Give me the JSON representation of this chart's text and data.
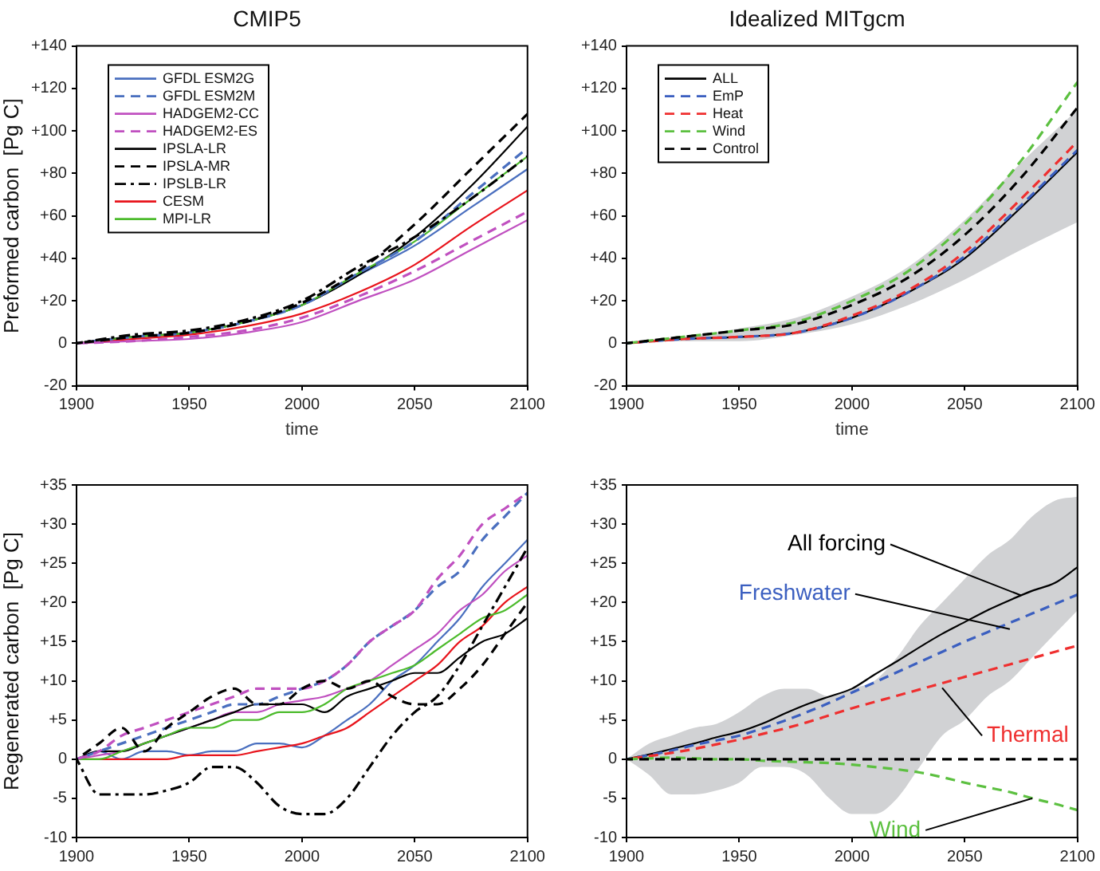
{
  "chart_data": [
    {
      "type": "line",
      "title": "CMIP5",
      "xlabel": "time",
      "ylabel": "Preformed carbon  [Pg C]",
      "legend": "top left",
      "x": [
        1900,
        1925,
        1950,
        1975,
        2000,
        2025,
        2050,
        2075,
        2100
      ],
      "xlim": [
        1900,
        2100
      ],
      "xticks": [
        1900,
        1950,
        2000,
        2050,
        2100
      ],
      "ylim": [
        -20,
        140
      ],
      "yticks": [
        -20,
        0,
        {
          "value": 20,
          "label": "+20"
        },
        {
          "value": 40,
          "label": "+40"
        },
        {
          "value": 60,
          "label": "+60"
        },
        {
          "value": 80,
          "label": "+80"
        },
        {
          "value": 100,
          "label": "+100"
        },
        {
          "value": 120,
          "label": "+120"
        },
        {
          "value": 140,
          "label": "+140"
        }
      ],
      "grid": false,
      "series": [
        {
          "name": "GFDL ESM2G",
          "color": "#4a6fbf",
          "line_style": "solid",
          "values": [
            0,
            3,
            5,
            10,
            18,
            32,
            46,
            64,
            82
          ]
        },
        {
          "name": "GFDL ESM2M",
          "color": "#4a6fbf",
          "line_style": "dashed",
          "values": [
            0,
            3,
            5,
            10,
            18,
            33,
            48,
            70,
            92
          ]
        },
        {
          "name": "HADGEM2-CC",
          "color": "#c050c0",
          "line_style": "solid",
          "values": [
            0,
            1,
            2,
            5,
            10,
            20,
            30,
            44,
            58
          ]
        },
        {
          "name": "HADGEM2-ES",
          "color": "#c050c0",
          "line_style": "dashed",
          "values": [
            0,
            1,
            3,
            6,
            12,
            22,
            34,
            48,
            62
          ]
        },
        {
          "name": "IPSLA-LR",
          "color": "#000000",
          "line_style": "solid",
          "values": [
            0,
            3,
            5,
            10,
            18,
            32,
            50,
            74,
            102
          ]
        },
        {
          "name": "IPSLA-MR",
          "color": "#000000",
          "line_style": "dashed",
          "values": [
            0,
            3,
            5,
            10,
            19,
            34,
            56,
            82,
            108
          ]
        },
        {
          "name": "IPSLB-LR",
          "color": "#000000",
          "line_style": "dashdot",
          "values": [
            0,
            4,
            6,
            11,
            20,
            36,
            50,
            68,
            88
          ]
        },
        {
          "name": "CESM",
          "color": "#e8141c",
          "line_style": "solid",
          "values": [
            0,
            2,
            4,
            8,
            14,
            24,
            37,
            55,
            72
          ]
        },
        {
          "name": "MPI-LR",
          "color": "#4cbb2c",
          "line_style": "solid",
          "values": [
            0,
            3,
            5,
            10,
            18,
            33,
            48,
            68,
            88
          ]
        }
      ]
    },
    {
      "type": "line",
      "title": "Idealized MITgcm",
      "xlabel": "time",
      "legend": "top left",
      "x": [
        1900,
        1925,
        1950,
        1975,
        2000,
        2025,
        2050,
        2075,
        2100
      ],
      "xlim": [
        1900,
        2100
      ],
      "xticks": [
        1900,
        1950,
        2000,
        2050,
        2100
      ],
      "ylim": [
        -20,
        140
      ],
      "yticks": [
        -20,
        0,
        {
          "value": 20,
          "label": "+20"
        },
        {
          "value": 40,
          "label": "+40"
        },
        {
          "value": 60,
          "label": "+60"
        },
        {
          "value": 80,
          "label": "+80"
        },
        {
          "value": 100,
          "label": "+100"
        },
        {
          "value": 120,
          "label": "+120"
        },
        {
          "value": 140,
          "label": "+140"
        }
      ],
      "grid": false,
      "series": [
        {
          "name": "ALL",
          "color": "#000000",
          "line_style": "solid",
          "values": [
            0,
            2,
            3,
            5,
            12,
            24,
            40,
            64,
            90
          ],
          "lower": [
            0,
            1,
            1,
            4,
            9,
            18,
            30,
            44,
            57
          ],
          "upper": [
            0,
            3,
            7,
            12,
            22,
            36,
            58,
            85,
            110
          ]
        },
        {
          "name": "EmP",
          "color": "#3b5fc0",
          "line_style": "dashed",
          "values": [
            0,
            2,
            3,
            5,
            12,
            24,
            41,
            65,
            91
          ]
        },
        {
          "name": "Heat",
          "color": "#ef2f2f",
          "line_style": "dashed",
          "values": [
            0,
            2,
            3,
            5,
            13,
            25,
            43,
            68,
            95
          ]
        },
        {
          "name": "Wind",
          "color": "#5cc040",
          "line_style": "dashed",
          "values": [
            0,
            3,
            6,
            10,
            20,
            34,
            56,
            86,
            123
          ]
        },
        {
          "name": "Control",
          "color": "#000000",
          "line_style": "dashed",
          "values": [
            0,
            3,
            6,
            9,
            18,
            31,
            51,
            78,
            111
          ]
        }
      ]
    },
    {
      "type": "line",
      "ylabel": "Regenerated carbon  [Pg C]",
      "x": [
        1900,
        1910,
        1920,
        1930,
        1940,
        1950,
        1960,
        1970,
        1980,
        1990,
        2000,
        2010,
        2020,
        2030,
        2040,
        2050,
        2060,
        2070,
        2080,
        2090,
        2100
      ],
      "xlim": [
        1900,
        2100
      ],
      "xticks": [
        1900,
        1950,
        2000,
        2050,
        2100
      ],
      "ylim": [
        -10,
        35
      ],
      "yticks": [
        -10,
        -5,
        0,
        {
          "value": 5,
          "label": "+5"
        },
        {
          "value": 10,
          "label": "+10"
        },
        {
          "value": 15,
          "label": "+15"
        },
        {
          "value": 20,
          "label": "+20"
        },
        {
          "value": 25,
          "label": "+25"
        },
        {
          "value": 30,
          "label": "+30"
        },
        {
          "value": 35,
          "label": "+35"
        }
      ],
      "grid": false,
      "series": [
        {
          "color": "#4a6fbf",
          "line_style": "solid",
          "values": [
            0,
            1,
            0,
            1,
            1,
            0.5,
            1,
            1,
            2,
            2,
            1.5,
            3,
            5,
            7,
            10,
            12,
            15,
            18,
            22,
            25,
            28
          ]
        },
        {
          "color": "#4a6fbf",
          "line_style": "dashed",
          "values": [
            0,
            1,
            2,
            3,
            4,
            5,
            6,
            7,
            7,
            8,
            9,
            10,
            12,
            15,
            17,
            19,
            22,
            24,
            28,
            31,
            34
          ]
        },
        {
          "color": "#c050c0",
          "line_style": "solid",
          "values": [
            0,
            0.5,
            1,
            2,
            3,
            4,
            5,
            6,
            6,
            7,
            7.5,
            8,
            9,
            10,
            12,
            14,
            16,
            19,
            21,
            24,
            26
          ]
        },
        {
          "color": "#c050c0",
          "line_style": "dashed",
          "values": [
            0,
            1,
            3,
            4,
            5,
            6,
            7,
            8,
            9,
            9,
            9,
            10,
            12,
            15,
            17,
            19,
            23,
            26,
            30,
            32,
            34
          ]
        },
        {
          "color": "#000000",
          "line_style": "solid",
          "values": [
            0,
            1,
            1,
            2,
            3,
            4,
            5,
            6,
            7,
            7,
            7,
            6,
            8,
            9,
            10,
            11,
            11,
            13,
            15,
            16,
            18
          ]
        },
        {
          "color": "#000000",
          "line_style": "dashed",
          "values": [
            0,
            2,
            4,
            1,
            4,
            6,
            8,
            9,
            7,
            7,
            9,
            10,
            9,
            10,
            8,
            7,
            7,
            9,
            12,
            16,
            20
          ]
        },
        {
          "color": "#000000",
          "line_style": "dashdot",
          "values": [
            0,
            -4.5,
            -4.5,
            -4.5,
            -4,
            -3,
            -1,
            -1,
            -3,
            -6,
            -7,
            -7,
            -5,
            -1,
            3,
            6,
            8,
            12,
            17,
            22,
            27
          ]
        },
        {
          "color": "#e8141c",
          "line_style": "solid",
          "values": [
            0,
            0,
            0,
            0,
            0,
            0.5,
            0.5,
            0.5,
            1,
            1.5,
            2,
            3,
            4,
            6,
            8,
            10,
            12,
            15,
            17,
            20,
            22
          ]
        },
        {
          "color": "#4cbb2c",
          "line_style": "solid",
          "values": [
            0,
            0,
            1,
            2,
            3,
            4,
            4,
            5,
            5,
            6,
            6,
            7,
            9,
            10,
            11,
            12,
            14,
            16,
            18,
            19,
            21
          ]
        }
      ]
    },
    {
      "type": "line",
      "x": [
        1900,
        1910,
        1920,
        1930,
        1940,
        1950,
        1960,
        1970,
        1980,
        1990,
        2000,
        2010,
        2020,
        2030,
        2040,
        2050,
        2060,
        2070,
        2080,
        2090,
        2100
      ],
      "xlim": [
        1900,
        2100
      ],
      "xticks": [
        1900,
        1950,
        2000,
        2050,
        2100
      ],
      "ylim": [
        -10,
        35
      ],
      "yticks": [
        -10,
        -5,
        0,
        {
          "value": 5,
          "label": "+5"
        },
        {
          "value": 10,
          "label": "+10"
        },
        {
          "value": 15,
          "label": "+15"
        },
        {
          "value": 20,
          "label": "+20"
        },
        {
          "value": 25,
          "label": "+25"
        },
        {
          "value": 30,
          "label": "+30"
        },
        {
          "value": 35,
          "label": "+35"
        }
      ],
      "grid": false,
      "annotations": [
        {
          "text": "All forcing",
          "x": 2075,
          "y": 20.9
        },
        {
          "text": "Freshwater",
          "x": 2070,
          "y": 16.6
        },
        {
          "text": "Thermal",
          "x": 2040,
          "y": 9.1
        },
        {
          "text": "Wind",
          "x": 2080,
          "y": -5
        }
      ],
      "series": [
        {
          "color": "#000000",
          "line_style": "solid",
          "values": [
            0,
            0.6,
            1.3,
            2,
            2.8,
            3.5,
            4.5,
            5.8,
            7,
            8,
            9,
            10.8,
            12.5,
            14.3,
            16,
            17.5,
            19,
            20.3,
            21.5,
            22.5,
            24.5
          ],
          "lower": [
            0,
            -2,
            -4.5,
            -4.5,
            -4,
            -3,
            -1,
            -1,
            -2,
            -5,
            -7,
            -7,
            -5,
            -1,
            3,
            5,
            8,
            10,
            13,
            16,
            19
          ],
          "upper": [
            0,
            2,
            3,
            4,
            4.5,
            6,
            8,
            9,
            9,
            8,
            9,
            10,
            13,
            17,
            20,
            23,
            26,
            28,
            31,
            33,
            33.5
          ]
        },
        {
          "color": "#3b5fc0",
          "line_style": "dashed",
          "values": [
            0,
            0.5,
            1.1,
            1.8,
            2.4,
            3,
            3.9,
            4.9,
            6,
            7.2,
            8.5,
            9.8,
            11.1,
            12.4,
            13.7,
            15,
            16.2,
            17.4,
            18.6,
            19.8,
            21
          ]
        },
        {
          "color": "#ef2f2f",
          "line_style": "dashed",
          "values": [
            0,
            0.4,
            0.8,
            1.3,
            1.9,
            2.5,
            3.2,
            3.9,
            4.7,
            5.6,
            6.5,
            7.3,
            8.1,
            8.9,
            9.7,
            10.5,
            11.3,
            12.1,
            12.9,
            13.7,
            14.5
          ]
        },
        {
          "color": "#5cc040",
          "line_style": "dashed",
          "values": [
            0,
            0.1,
            0.2,
            0.1,
            0,
            0,
            -0.2,
            -0.3,
            -0.4,
            -0.5,
            -0.7,
            -1,
            -1.3,
            -1.7,
            -2.3,
            -3,
            -3.6,
            -4.2,
            -5,
            -5.7,
            -6.5
          ]
        },
        {
          "color": "#000000",
          "line_style": "dashed",
          "values": [
            0,
            0,
            0,
            0,
            0,
            0,
            0,
            0,
            0,
            0,
            0,
            0,
            0,
            0,
            0,
            0,
            0,
            0,
            0,
            0,
            0
          ]
        }
      ]
    }
  ]
}
